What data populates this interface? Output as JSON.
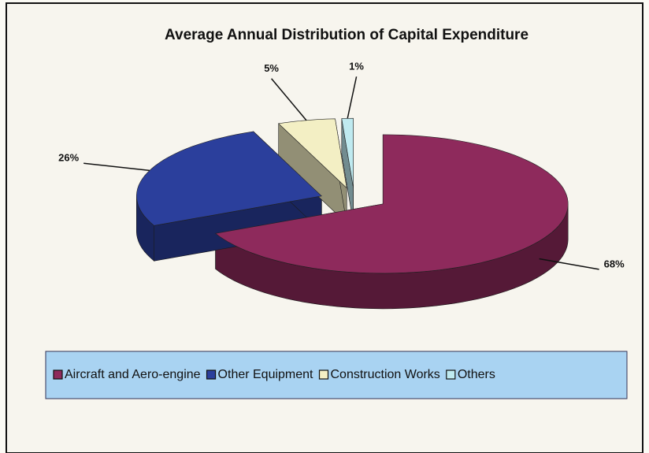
{
  "chart_data": {
    "type": "pie",
    "title": "Average Annual Distribution of Capital Expenditure",
    "categories": [
      "Aircraft and Aero-engine",
      "Other Equipment",
      "Construction Works",
      "Others"
    ],
    "values": [
      68,
      26,
      5,
      1
    ],
    "value_labels": [
      "68%",
      "26%",
      "5%",
      "1%"
    ],
    "colors": [
      "#8e2a5c",
      "#2b3f9c",
      "#f3efc4",
      "#bfeaf0"
    ],
    "legend": "bottom"
  }
}
